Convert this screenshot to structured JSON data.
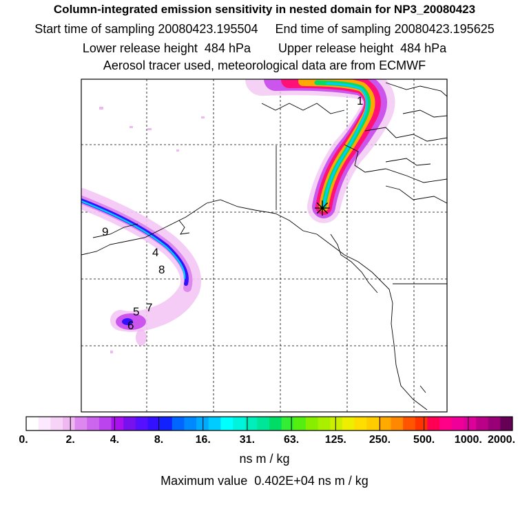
{
  "header": {
    "title": "Column-integrated emission sensitivity in nested domain for NP3_20080423",
    "sampling": "Start time of sampling 20080423.195504     End time of sampling 20080423.195625",
    "release": "Lower release height  484 hPa        Upper release height  484 hPa",
    "info": "Aerosol tracer used, meteorological data are from ECMWF"
  },
  "map": {
    "markers": [
      "1",
      "4",
      "5",
      "6",
      "7",
      "8",
      "9"
    ],
    "receptor_symbol": "✳"
  },
  "colorbar": {
    "labels": [
      "0.",
      "2.",
      "4.",
      "8.",
      "16.",
      "31.",
      "63.",
      "125.",
      "250.",
      "500.",
      "1000.",
      "2000."
    ],
    "colors": [
      "#ffffff",
      "#fde9fd",
      "#f8d3f8",
      "#f0b8f0",
      "#dd88ee",
      "#cc66ee",
      "#bb44ee",
      "#aa11ee",
      "#7711ee",
      "#5511ff",
      "#3311ff",
      "#1122ff",
      "#0066ff",
      "#0088ff",
      "#00aaff",
      "#00ccff",
      "#00ffff",
      "#00f4dd",
      "#00eebb",
      "#00e699",
      "#00dd66",
      "#33ee33",
      "#55ee11",
      "#88ee00",
      "#aaee00",
      "#ccee00",
      "#eeee00",
      "#ffdd00",
      "#ffcc00",
      "#ffaa00",
      "#ff8800",
      "#ff5500",
      "#ff3300",
      "#ff0055",
      "#ff0088",
      "#ee0099",
      "#dd0099",
      "#bb0088",
      "#990077",
      "#660055"
    ],
    "unit": "ns m / kg"
  },
  "footer": {
    "max_value": "Maximum value  0.402E+04 ns m / kg"
  }
}
